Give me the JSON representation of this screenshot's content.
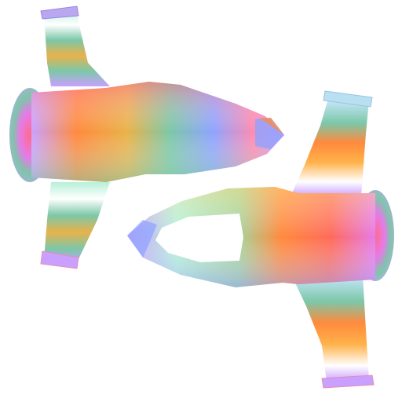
{
  "scene": {
    "background": "#ffffff",
    "objects": [
      {
        "name": "spaceship-left",
        "facing": "right"
      },
      {
        "name": "spaceship-right",
        "facing": "left"
      }
    ],
    "palette": [
      "#ff8a3d",
      "#ff6b8a",
      "#e67ae8",
      "#8fa3ff",
      "#7cc7a8",
      "#ffe08a",
      "#b6f0d8",
      "#c9a0ff"
    ]
  }
}
